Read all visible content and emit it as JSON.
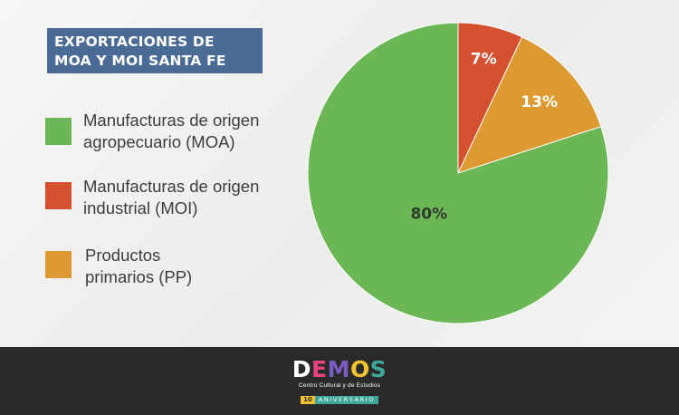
{
  "title": {
    "line1": "EXPORTACIONES DE",
    "line2": "MOA Y MOI SANTA FE"
  },
  "legend": [
    {
      "line1": "Manufacturas de origen",
      "line2": "agropecuario (MOA)",
      "color": "#6bb755"
    },
    {
      "line1": "Manufacturas de origen",
      "line2": "industrial (MOI)",
      "color": "#d4502e"
    },
    {
      "line1": "Productos",
      "line2": "primarios (PP)",
      "color": "#dd9a32"
    }
  ],
  "chart_data": {
    "type": "pie",
    "slices": [
      {
        "name": "Manufacturas de origen agropecuario (MOA)",
        "value": 80,
        "label": "80%",
        "color": "#6bb755",
        "label_color": "#2f3a2a"
      },
      {
        "name": "Manufacturas de origen industrial (MOI)",
        "value": 7,
        "label": "7%",
        "color": "#d4502e",
        "label_color": "#ffffff"
      },
      {
        "name": "Productos primarios (PP)",
        "value": 13,
        "label": "13%",
        "color": "#dd9a32",
        "label_color": "#ffffff"
      }
    ],
    "start": "12 o'clock",
    "direction": "clockwise, MOI then PP then MOA",
    "legend_position": "left"
  },
  "footer": {
    "logo_letters": [
      "D",
      "E",
      "M",
      "O",
      "S"
    ],
    "logo_letter_colors": [
      "#ffffff",
      "#e8417e",
      "#7b5cc4",
      "#f2c230",
      "#3fa79a"
    ],
    "subtitle": "Centro Cultural y de Estudios",
    "badge_number": "10",
    "badge_text": "ANIVERSARIO"
  }
}
